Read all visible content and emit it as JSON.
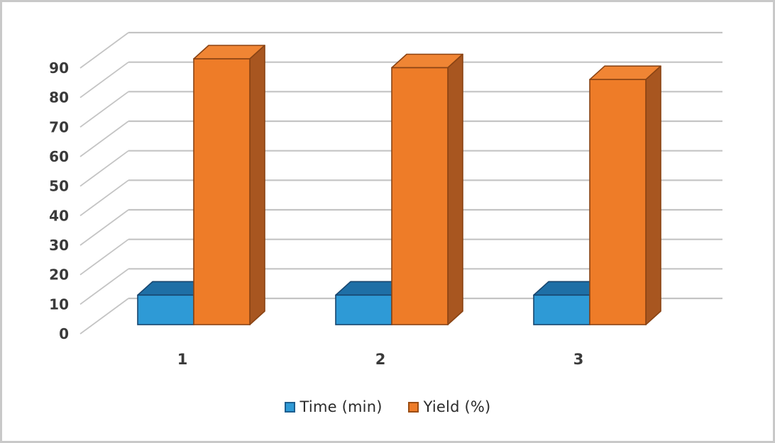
{
  "chart_data": {
    "type": "bar",
    "variant": "3d-clustered-column",
    "title": "",
    "xlabel": "",
    "ylabel": "",
    "categories": [
      "1",
      "2",
      "3"
    ],
    "series": [
      {
        "name": "Time (min)",
        "values": [
          10,
          10,
          10
        ],
        "front_color": "#2E9AD6",
        "top_color": "#1E6FA6",
        "side_color": "#1A5580",
        "edge_color": "#17456E"
      },
      {
        "name": "Yield (%)",
        "values": [
          90,
          87,
          83
        ],
        "front_color": "#EE7C28",
        "top_color": "#F08534",
        "side_color": "#A85620",
        "edge_color": "#8A4414"
      }
    ],
    "yticks": [
      0,
      10,
      20,
      30,
      40,
      50,
      60,
      70,
      80,
      90
    ],
    "ylim": [
      0,
      90
    ],
    "grid": true,
    "gridline_color": "#c4c4c4",
    "legend_position": "bottom"
  },
  "legend": {
    "swatch_borders": [
      "#1C5E8F",
      "#9C4D12"
    ]
  },
  "frame": {
    "border_color": "#c9c9c9",
    "background": "#ffffff"
  }
}
